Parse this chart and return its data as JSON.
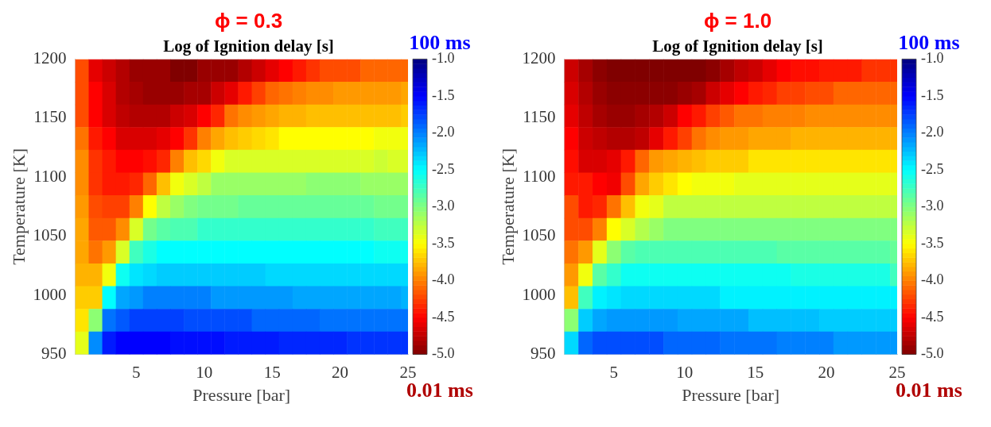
{
  "chart_data": [
    {
      "type": "heatmap",
      "title": "ϕ = 0.3",
      "subtitle": "Log of Ignition delay [s]",
      "xlabel": "Pressure [bar]",
      "ylabel": "Temperature [K]",
      "x": [
        1,
        2,
        3,
        4,
        5,
        6,
        7,
        8,
        9,
        10,
        11,
        12,
        13,
        14,
        15,
        16,
        17,
        18,
        19,
        20,
        21,
        22,
        23,
        24,
        25
      ],
      "xlim": [
        0.5,
        25
      ],
      "xticks": [
        5,
        10,
        15,
        20,
        25
      ],
      "ylim": [
        950,
        1200
      ],
      "yticks": [
        950,
        1000,
        1050,
        1100,
        1150,
        1200
      ],
      "clim": [
        -5,
        -1
      ],
      "cticks": [
        {
          "value": -5,
          "label": "-5.0"
        },
        {
          "value": -4.5,
          "label": "-4.5"
        },
        {
          "value": -4,
          "label": "-4.0"
        },
        {
          "value": -3.5,
          "label": "-3.5"
        },
        {
          "value": -3,
          "label": "-3.0"
        },
        {
          "value": -2.5,
          "label": "-2.5"
        },
        {
          "value": -2,
          "label": "-2.0"
        },
        {
          "value": -1.5,
          "label": "-1.5"
        },
        {
          "value": -1,
          "label": "-1.0"
        }
      ],
      "annotations": [
        "100 ms",
        "0.01 ms"
      ],
      "cells": [
        [
          -4.2,
          -4.6,
          -4.7,
          -4.8,
          -4.9,
          -4.9,
          -4.9,
          -5.0,
          -5.0,
          -4.9,
          -4.9,
          -4.9,
          -4.8,
          -4.7,
          -4.6,
          -4.5,
          -4.4,
          -4.3,
          -4.2,
          -4.2,
          -4.2,
          -4.1,
          -4.1,
          -4.1,
          -4.1
        ],
        [
          -4.2,
          -4.5,
          -4.65,
          -4.8,
          -4.85,
          -4.9,
          -4.9,
          -4.9,
          -4.85,
          -4.85,
          -4.7,
          -4.6,
          -4.4,
          -4.25,
          -4.1,
          -4.05,
          -4.0,
          -3.95,
          -3.95,
          -3.9,
          -3.9,
          -3.9,
          -3.9,
          -3.9,
          -3.85
        ],
        [
          -4.2,
          -4.5,
          -4.65,
          -4.75,
          -4.8,
          -4.8,
          -4.8,
          -4.7,
          -4.65,
          -4.5,
          -4.35,
          -4.05,
          -3.95,
          -3.9,
          -3.85,
          -3.8,
          -3.8,
          -3.75,
          -3.75,
          -3.75,
          -3.75,
          -3.75,
          -3.75,
          -3.75,
          -3.7
        ],
        [
          -4.05,
          -4.4,
          -4.5,
          -4.65,
          -4.65,
          -4.65,
          -4.6,
          -4.5,
          -4.3,
          -4.0,
          -3.85,
          -3.75,
          -3.7,
          -3.65,
          -3.6,
          -3.5,
          -3.5,
          -3.5,
          -3.5,
          -3.5,
          -3.5,
          -3.5,
          -3.45,
          -3.45,
          -3.45
        ],
        [
          -3.95,
          -4.3,
          -4.4,
          -4.5,
          -4.5,
          -4.45,
          -4.35,
          -4.0,
          -3.75,
          -3.65,
          -3.45,
          -3.35,
          -3.35,
          -3.35,
          -3.35,
          -3.35,
          -3.35,
          -3.35,
          -3.35,
          -3.35,
          -3.35,
          -3.35,
          -3.3,
          -3.35,
          -3.35
        ],
        [
          -3.95,
          -4.3,
          -4.4,
          -4.4,
          -4.35,
          -4.1,
          -3.75,
          -3.45,
          -3.35,
          -3.25,
          -3.1,
          -3.1,
          -3.1,
          -3.1,
          -3.1,
          -3.1,
          -3.1,
          -3.05,
          -3.05,
          -3.05,
          -3.05,
          -3.1,
          -3.1,
          -3.1,
          -3.1
        ],
        [
          -3.9,
          -4.2,
          -4.25,
          -4.25,
          -4.0,
          -3.5,
          -3.25,
          -3.1,
          -3.0,
          -2.95,
          -2.95,
          -2.95,
          -2.9,
          -2.9,
          -2.9,
          -2.9,
          -2.9,
          -2.9,
          -2.9,
          -2.9,
          -2.9,
          -2.9,
          -2.95,
          -2.95,
          -2.95
        ],
        [
          -3.85,
          -4.15,
          -4.15,
          -3.95,
          -3.35,
          -2.95,
          -2.85,
          -2.8,
          -2.8,
          -2.7,
          -2.7,
          -2.7,
          -2.7,
          -2.7,
          -2.7,
          -2.7,
          -2.7,
          -2.7,
          -2.7,
          -2.7,
          -2.7,
          -2.7,
          -2.75,
          -2.75,
          -2.75
        ],
        [
          -3.85,
          -4.05,
          -3.9,
          -3.35,
          -2.75,
          -2.6,
          -2.5,
          -2.5,
          -2.5,
          -2.5,
          -2.5,
          -2.5,
          -2.5,
          -2.5,
          -2.5,
          -2.5,
          -2.5,
          -2.5,
          -2.5,
          -2.5,
          -2.5,
          -2.5,
          -2.55,
          -2.55,
          -2.55
        ],
        [
          -3.8,
          -3.8,
          -3.45,
          -2.55,
          -2.4,
          -2.35,
          -2.3,
          -2.3,
          -2.3,
          -2.3,
          -2.3,
          -2.3,
          -2.3,
          -2.3,
          -2.35,
          -2.35,
          -2.35,
          -2.35,
          -2.35,
          -2.35,
          -2.35,
          -2.35,
          -2.35,
          -2.35,
          -2.35
        ],
        [
          -3.7,
          -3.7,
          -2.5,
          -2.15,
          -2.1,
          -2.0,
          -2.0,
          -2.0,
          -2.0,
          -2.0,
          -2.1,
          -2.1,
          -2.1,
          -2.1,
          -2.1,
          -2.1,
          -2.15,
          -2.15,
          -2.15,
          -2.15,
          -2.15,
          -2.15,
          -2.15,
          -2.15,
          -2.2
        ],
        [
          -3.6,
          -3.05,
          -1.95,
          -1.85,
          -1.75,
          -1.75,
          -1.75,
          -1.75,
          -1.8,
          -1.8,
          -1.8,
          -1.8,
          -1.8,
          -1.9,
          -1.9,
          -1.9,
          -1.9,
          -1.9,
          -1.95,
          -1.95,
          -1.95,
          -1.95,
          -1.95,
          -1.95,
          -1.95
        ],
        [
          -3.4,
          -2.05,
          -1.6,
          -1.5,
          -1.5,
          -1.5,
          -1.5,
          -1.55,
          -1.55,
          -1.55,
          -1.55,
          -1.6,
          -1.6,
          -1.6,
          -1.6,
          -1.65,
          -1.65,
          -1.65,
          -1.65,
          -1.65,
          -1.7,
          -1.7,
          -1.7,
          -1.7,
          -1.7
        ]
      ]
    },
    {
      "type": "heatmap",
      "title": "ϕ = 1.0",
      "subtitle": "Log of Ignition delay [s]",
      "xlabel": "Pressure [bar]",
      "ylabel": "Temperature [K]",
      "x": [
        2,
        3,
        4,
        5,
        6,
        7,
        8,
        9,
        10,
        11,
        12,
        13,
        14,
        15,
        16,
        17,
        18,
        19,
        20,
        21,
        22,
        23,
        24,
        25
      ],
      "xlim": [
        1.5,
        25
      ],
      "xticks": [
        5,
        10,
        15,
        20,
        25
      ],
      "ylim": [
        950,
        1200
      ],
      "yticks": [
        950,
        1000,
        1050,
        1100,
        1150,
        1200
      ],
      "clim": [
        -5,
        -1
      ],
      "cticks": [
        {
          "value": -5,
          "label": "-5.0"
        },
        {
          "value": -4.5,
          "label": "-4.5"
        },
        {
          "value": -4,
          "label": "-4.0"
        },
        {
          "value": -3.5,
          "label": "-3.5"
        },
        {
          "value": -3,
          "label": "-3.0"
        },
        {
          "value": -2.5,
          "label": "-2.5"
        },
        {
          "value": -2,
          "label": "-2.0"
        },
        {
          "value": -1.5,
          "label": "-1.5"
        },
        {
          "value": -1,
          "label": "-1.0"
        }
      ],
      "annotations": [
        "100 ms",
        "0.01 ms"
      ],
      "cells": [
        [
          -4.7,
          -4.85,
          -4.95,
          -5.0,
          -5.0,
          -5.0,
          -5.0,
          -5.0,
          -5.0,
          -5.0,
          -4.95,
          -4.85,
          -4.75,
          -4.7,
          -4.6,
          -4.5,
          -4.45,
          -4.45,
          -4.4,
          -4.4,
          -4.4,
          -4.3,
          -4.3,
          -4.3
        ],
        [
          -4.65,
          -4.8,
          -4.9,
          -4.95,
          -4.95,
          -4.95,
          -4.95,
          -4.95,
          -4.9,
          -4.85,
          -4.7,
          -4.6,
          -4.5,
          -4.4,
          -4.35,
          -4.25,
          -4.25,
          -4.2,
          -4.2,
          -4.1,
          -4.1,
          -4.1,
          -4.1,
          -4.1
        ],
        [
          -4.6,
          -4.75,
          -4.85,
          -4.9,
          -4.9,
          -4.85,
          -4.8,
          -4.7,
          -4.5,
          -4.4,
          -4.25,
          -4.15,
          -4.05,
          -4.05,
          -4.0,
          -4.0,
          -4.0,
          -3.95,
          -3.95,
          -3.95,
          -3.95,
          -3.95,
          -3.95,
          -3.95
        ],
        [
          -4.5,
          -4.7,
          -4.75,
          -4.8,
          -4.8,
          -4.75,
          -4.6,
          -4.4,
          -4.25,
          -4.05,
          -3.95,
          -3.9,
          -3.9,
          -3.85,
          -3.85,
          -3.85,
          -3.8,
          -3.8,
          -3.8,
          -3.8,
          -3.8,
          -3.8,
          -3.8,
          -3.8
        ],
        [
          -4.45,
          -4.65,
          -4.65,
          -4.6,
          -4.4,
          -4.1,
          -3.9,
          -3.85,
          -3.8,
          -3.75,
          -3.7,
          -3.7,
          -3.7,
          -3.6,
          -3.6,
          -3.6,
          -3.6,
          -3.6,
          -3.6,
          -3.6,
          -3.6,
          -3.6,
          -3.6,
          -3.6
        ],
        [
          -4.4,
          -4.4,
          -4.5,
          -4.55,
          -4.2,
          -3.85,
          -3.7,
          -3.6,
          -3.5,
          -3.45,
          -3.45,
          -3.45,
          -3.4,
          -3.4,
          -3.4,
          -3.4,
          -3.4,
          -3.4,
          -3.4,
          -3.4,
          -3.4,
          -3.4,
          -3.4,
          -3.4
        ],
        [
          -4.2,
          -4.4,
          -4.35,
          -4.05,
          -3.75,
          -3.45,
          -3.4,
          -3.25,
          -3.25,
          -3.25,
          -3.25,
          -3.25,
          -3.25,
          -3.25,
          -3.25,
          -3.25,
          -3.25,
          -3.25,
          -3.25,
          -3.25,
          -3.25,
          -3.25,
          -3.25,
          -3.25
        ],
        [
          -4.2,
          -4.2,
          -4.0,
          -3.5,
          -3.35,
          -3.2,
          -3.1,
          -3.0,
          -3.0,
          -3.0,
          -3.0,
          -3.0,
          -3.0,
          -3.0,
          -3.0,
          -3.0,
          -3.0,
          -3.0,
          -3.0,
          -3.0,
          -3.0,
          -3.0,
          -3.0,
          -3.0
        ],
        [
          -4.05,
          -3.9,
          -3.4,
          -3.05,
          -2.85,
          -2.8,
          -2.8,
          -2.8,
          -2.8,
          -2.8,
          -2.8,
          -2.8,
          -2.8,
          -2.8,
          -2.8,
          -2.85,
          -2.85,
          -2.85,
          -2.85,
          -2.85,
          -2.85,
          -2.85,
          -2.85,
          -2.9
        ],
        [
          -3.9,
          -3.45,
          -2.85,
          -2.7,
          -2.55,
          -2.55,
          -2.55,
          -2.55,
          -2.55,
          -2.55,
          -2.55,
          -2.55,
          -2.55,
          -2.55,
          -2.55,
          -2.55,
          -2.6,
          -2.6,
          -2.6,
          -2.6,
          -2.6,
          -2.6,
          -2.6,
          -2.75
        ],
        [
          -3.75,
          -2.75,
          -2.45,
          -2.4,
          -2.35,
          -2.35,
          -2.35,
          -2.35,
          -2.35,
          -2.35,
          -2.35,
          -2.45,
          -2.45,
          -2.45,
          -2.45,
          -2.45,
          -2.45,
          -2.45,
          -2.45,
          -2.45,
          -2.45,
          -2.45,
          -2.45,
          -2.45
        ],
        [
          -3.05,
          -2.3,
          -2.15,
          -2.1,
          -2.1,
          -2.1,
          -2.1,
          -2.1,
          -2.15,
          -2.15,
          -2.15,
          -2.15,
          -2.15,
          -2.25,
          -2.25,
          -2.25,
          -2.25,
          -2.25,
          -2.3,
          -2.3,
          -2.3,
          -2.3,
          -2.3,
          -2.3
        ],
        [
          -2.35,
          -1.9,
          -1.8,
          -1.8,
          -1.8,
          -1.8,
          -1.8,
          -1.9,
          -1.9,
          -1.9,
          -1.9,
          -1.95,
          -1.95,
          -1.95,
          -1.95,
          -2.0,
          -2.0,
          -2.0,
          -2.0,
          -2.1,
          -2.1,
          -2.1,
          -2.1,
          -2.1
        ]
      ]
    }
  ]
}
